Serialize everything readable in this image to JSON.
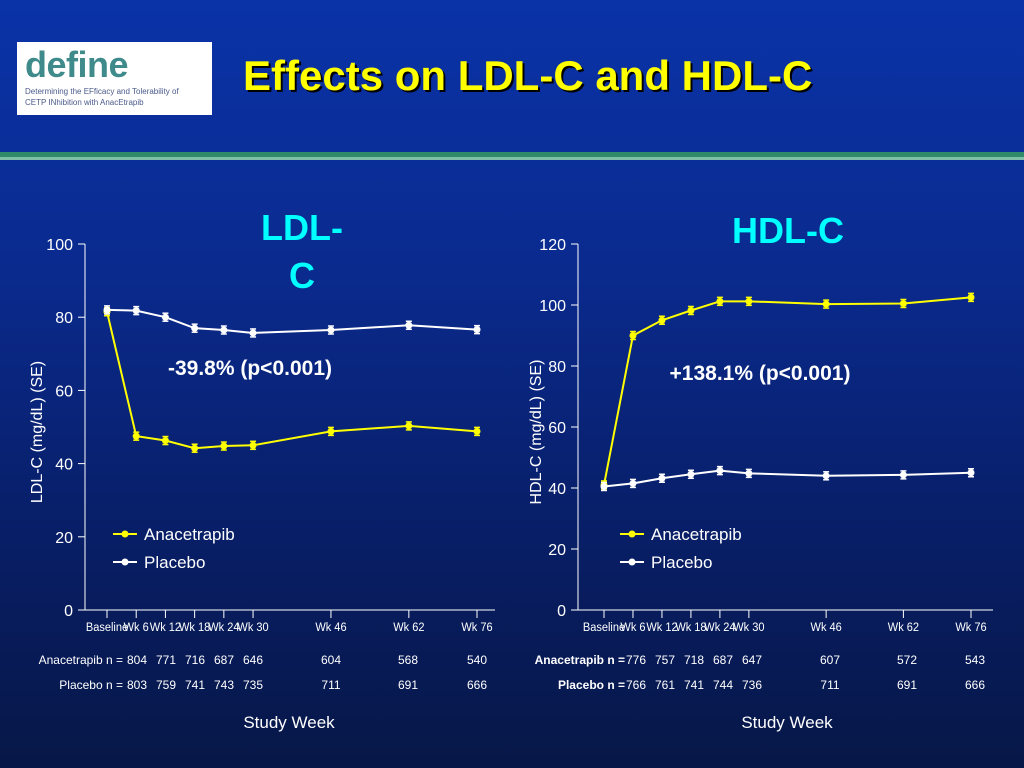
{
  "logo": {
    "word": "define",
    "subtitle_line1": "Determining the EFficacy and Tolerability of",
    "subtitle_line2": "CETP INhibition with AnacEtrapib"
  },
  "title": "Effects on LDL-C and HDL-C",
  "colors": {
    "anacetrapib": "#ffff00",
    "placebo": "#ffffff",
    "panel_title": "#00ffff",
    "title": "#ffff00"
  },
  "chart_data": [
    {
      "type": "line",
      "title": "LDL-C",
      "ylabel": "LDL-C (mg/dL) (SE)",
      "xlabel": "Study Week",
      "ylim": [
        0,
        100
      ],
      "yticks": [
        0,
        20,
        40,
        60,
        80,
        100
      ],
      "x": [
        0,
        6,
        12,
        18,
        24,
        30,
        46,
        62,
        76
      ],
      "xticklabels": [
        "Baseline",
        "Wk 6",
        "Wk 12",
        "Wk 18",
        "Wk 24",
        "Wk 30",
        "Wk 46",
        "Wk 62",
        "Wk 76"
      ],
      "annotation": "-39.8% (p<0.001)",
      "series": [
        {
          "name": "Anacetrapib",
          "values": [
            81.5,
            47.5,
            46.3,
            44.2,
            44.8,
            45.0,
            48.8,
            50.3,
            48.8
          ]
        },
        {
          "name": "Placebo",
          "values": [
            82.0,
            81.8,
            80.0,
            77.0,
            76.5,
            75.7,
            76.5,
            77.8,
            76.6
          ]
        }
      ],
      "n_table": {
        "rows": [
          {
            "label": "Anacetrapib n =",
            "bold": false,
            "values": [
              "804",
              "771",
              "716",
              "687",
              "646",
              "604",
              "568",
              "540"
            ]
          },
          {
            "label": "Placebo n =",
            "bold": false,
            "values": [
              "803",
              "759",
              "741",
              "743",
              "735",
              "711",
              "691",
              "666"
            ]
          }
        ]
      }
    },
    {
      "type": "line",
      "title": "HDL-C",
      "ylabel": "HDL-C (mg/dL) (SE)",
      "xlabel": "Study Week",
      "ylim": [
        0,
        120
      ],
      "yticks": [
        0,
        20,
        40,
        60,
        80,
        100,
        120
      ],
      "x": [
        0,
        6,
        12,
        18,
        24,
        30,
        46,
        62,
        76
      ],
      "xticklabels": [
        "Baseline",
        "Wk 6",
        "Wk 12",
        "Wk 18",
        "Wk 24",
        "Wk 30",
        "Wk 46",
        "Wk 62",
        "Wk 76"
      ],
      "annotation": "+138.1% (p<0.001)",
      "series": [
        {
          "name": "Anacetrapib",
          "values": [
            41.0,
            90.0,
            95.0,
            98.2,
            101.2,
            101.2,
            100.3,
            100.5,
            102.5
          ]
        },
        {
          "name": "Placebo",
          "values": [
            40.5,
            41.5,
            43.2,
            44.5,
            45.7,
            44.8,
            44.0,
            44.3,
            45.0
          ]
        }
      ],
      "n_table": {
        "rows": [
          {
            "label": "Anacetrapib n =",
            "bold": true,
            "values": [
              "776",
              "757",
              "718",
              "687",
              "647",
              "607",
              "572",
              "543"
            ]
          },
          {
            "label": "Placebo n =",
            "bold": true,
            "values": [
              "766",
              "761",
              "741",
              "744",
              "736",
              "711",
              "691",
              "666"
            ]
          }
        ]
      }
    }
  ]
}
